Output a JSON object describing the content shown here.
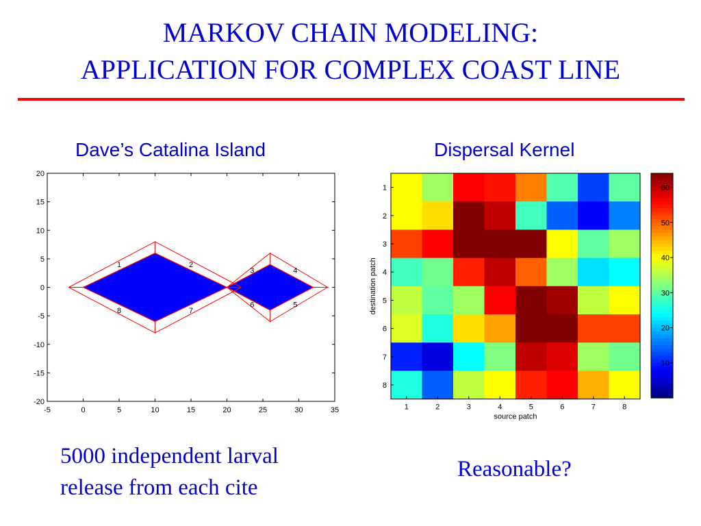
{
  "slide": {
    "title_line1": "MARKOV CHAIN MODELING:",
    "title_line2": "APPLICATION FOR COMPLEX COAST LINE",
    "left_heading": "Dave’s Catalina Island",
    "right_heading": "Dispersal Kernel",
    "caption_line1": "5000 independent larval",
    "caption_line2": "release from each cite",
    "question": "Reasonable?",
    "accent_color": "#ff0000",
    "text_color": "#0000cc"
  },
  "chart_data": [
    {
      "type": "line",
      "xlim": [
        -5,
        35
      ],
      "ylim": [
        -20,
        20
      ],
      "xticks": [
        -5,
        0,
        5,
        10,
        15,
        20,
        25,
        30,
        35
      ],
      "yticks": [
        20,
        15,
        10,
        5,
        0,
        -5,
        -10,
        -15,
        -20
      ],
      "fill_color": "#0000ff",
      "outline_color": "#ff0000",
      "islands": [
        {
          "points": [
            [
              0,
              0
            ],
            [
              10,
              6
            ],
            [
              20,
              0
            ],
            [
              10,
              -6
            ]
          ]
        },
        {
          "points": [
            [
              20,
              0
            ],
            [
              26,
              4
            ],
            [
              32,
              0
            ],
            [
              26,
              -4
            ]
          ]
        }
      ],
      "patches": [
        {
          "label": "1",
          "points": [
            [
              -2,
              0
            ],
            [
              10,
              8
            ],
            [
              10,
              6
            ],
            [
              0,
              0
            ]
          ],
          "label_at": [
            5,
            4
          ]
        },
        {
          "label": "2",
          "points": [
            [
              10,
              8
            ],
            [
              22,
              0
            ],
            [
              20,
              0
            ],
            [
              10,
              6
            ]
          ],
          "label_at": [
            15,
            4
          ]
        },
        {
          "label": "3",
          "points": [
            [
              20,
              0
            ],
            [
              26,
              6
            ],
            [
              26,
              4
            ]
          ],
          "label_at": [
            23.5,
            3
          ]
        },
        {
          "label": "4",
          "points": [
            [
              26,
              6
            ],
            [
              34,
              0
            ],
            [
              32,
              0
            ],
            [
              26,
              4
            ]
          ],
          "label_at": [
            29.5,
            3
          ]
        },
        {
          "label": "5",
          "points": [
            [
              34,
              0
            ],
            [
              26,
              -6
            ],
            [
              26,
              -4
            ],
            [
              32,
              0
            ]
          ],
          "label_at": [
            29.5,
            -3
          ]
        },
        {
          "label": "6",
          "points": [
            [
              26,
              -6
            ],
            [
              20,
              0
            ],
            [
              26,
              -4
            ]
          ],
          "label_at": [
            23.5,
            -3
          ]
        },
        {
          "label": "7",
          "points": [
            [
              22,
              0
            ],
            [
              10,
              -8
            ],
            [
              10,
              -6
            ],
            [
              20,
              0
            ]
          ],
          "label_at": [
            15,
            -4
          ]
        },
        {
          "label": "8",
          "points": [
            [
              10,
              -8
            ],
            [
              -2,
              0
            ],
            [
              0,
              0
            ],
            [
              10,
              -6
            ]
          ],
          "label_at": [
            5,
            -4
          ]
        }
      ]
    },
    {
      "type": "heatmap",
      "xlabel": "source patch",
      "ylabel": "destination patch",
      "x_categories": [
        "1",
        "2",
        "3",
        "4",
        "5",
        "6",
        "7",
        "8"
      ],
      "y_categories": [
        "1",
        "2",
        "3",
        "4",
        "5",
        "6",
        "7",
        "8"
      ],
      "color_range": [
        0,
        64
      ],
      "colorbar_ticks": [
        60,
        50,
        40,
        30,
        20,
        10
      ],
      "values": [
        [
          40,
          34,
          56,
          55,
          48,
          29,
          12,
          30
        ],
        [
          40,
          42,
          64,
          60,
          28,
          14,
          8,
          16
        ],
        [
          52,
          56,
          64,
          64,
          64,
          40,
          30,
          34
        ],
        [
          28,
          31,
          54,
          60,
          50,
          34,
          22,
          24
        ],
        [
          36,
          30,
          34,
          56,
          64,
          62,
          36,
          40
        ],
        [
          38,
          26,
          42,
          46,
          64,
          64,
          52,
          52
        ],
        [
          10,
          6,
          24,
          32,
          60,
          58,
          34,
          31
        ],
        [
          26,
          14,
          36,
          40,
          54,
          56,
          45,
          40
        ]
      ]
    }
  ]
}
